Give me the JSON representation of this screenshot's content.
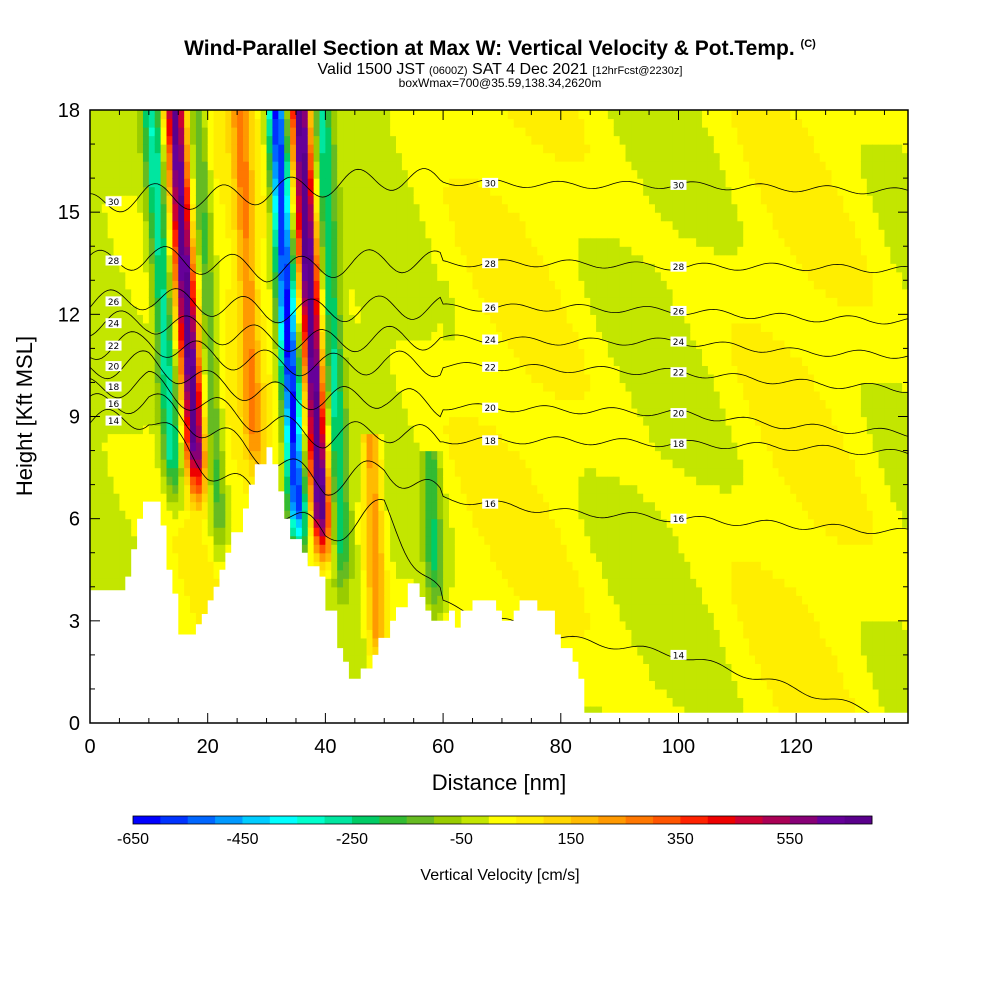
{
  "header": {
    "title": "Wind-Parallel Section at Max W: Vertical Velocity & Pot.Temp.",
    "copyright": "(C)",
    "subtitle_main": "Valid 1500 JST",
    "subtitle_utc": "(0600Z)",
    "subtitle_date": "SAT 4 Dec 2021",
    "subtitle_fcst": "[12hrFcst@2230z]",
    "box_note": "boxWmax=700@35.59,138.34,2620m"
  },
  "chart_data": {
    "type": "heatmap",
    "title": "Wind-Parallel Section at Max W: Vertical Velocity & Pot.Temp.",
    "xlabel": "Distance [nm]",
    "ylabel": "Height [Kft MSL]",
    "xlim": [
      0,
      139
    ],
    "ylim": [
      0,
      18
    ],
    "x_ticks": [
      "0",
      "20",
      "40",
      "60",
      "80",
      "100",
      "120"
    ],
    "x_tick_values": [
      0,
      20,
      40,
      60,
      80,
      100,
      120
    ],
    "y_ticks": [
      "0",
      "3",
      "6",
      "9",
      "12",
      "15",
      "18"
    ],
    "y_tick_values": [
      0,
      3,
      6,
      9,
      12,
      15,
      18
    ],
    "colorbar": {
      "label": "Vertical Velocity [cm/s]",
      "tick_labels": [
        "-650",
        "-450",
        "-250",
        "-50",
        "150",
        "350",
        "550"
      ],
      "min": -650,
      "max": 700,
      "step": 50,
      "colors": [
        "#0000ff",
        "#0033ff",
        "#0066ff",
        "#0099ff",
        "#00ccff",
        "#00ffff",
        "#00ffcc",
        "#00e6a0",
        "#00cc66",
        "#33bb33",
        "#66bb22",
        "#99cc00",
        "#c3e600",
        "#ffff00",
        "#ffee00",
        "#ffd700",
        "#ffbb00",
        "#ff9900",
        "#ff7700",
        "#ff5500",
        "#ff2200",
        "#ee0000",
        "#cc0033",
        "#aa0055",
        "#880077",
        "#660099",
        "#5a008c"
      ]
    },
    "terrain_kft": [
      [
        0,
        3.9
      ],
      [
        6,
        3.9
      ],
      [
        6,
        4.3
      ],
      [
        7,
        4.3
      ],
      [
        7,
        5.1
      ],
      [
        8,
        5.1
      ],
      [
        8,
        6.0
      ],
      [
        9,
        6.0
      ],
      [
        9,
        6.5
      ],
      [
        12,
        6.5
      ],
      [
        12,
        5.8
      ],
      [
        13,
        5.8
      ],
      [
        13,
        4.5
      ],
      [
        14,
        4.5
      ],
      [
        14,
        3.8
      ],
      [
        15,
        3.8
      ],
      [
        15,
        2.6
      ],
      [
        18,
        2.6
      ],
      [
        18,
        2.9
      ],
      [
        19,
        2.9
      ],
      [
        19,
        3.2
      ],
      [
        20,
        3.2
      ],
      [
        20,
        3.6
      ],
      [
        21,
        3.6
      ],
      [
        21,
        4.0
      ],
      [
        22,
        4.0
      ],
      [
        22,
        4.5
      ],
      [
        23,
        4.5
      ],
      [
        23,
        5.0
      ],
      [
        24,
        5.0
      ],
      [
        24,
        5.6
      ],
      [
        26,
        5.6
      ],
      [
        26,
        6.3
      ],
      [
        27,
        6.3
      ],
      [
        27,
        7.0
      ],
      [
        28,
        7.0
      ],
      [
        28,
        7.6
      ],
      [
        30,
        7.6
      ],
      [
        30,
        8.1
      ],
      [
        31,
        8.1
      ],
      [
        31,
        7.6
      ],
      [
        32,
        7.6
      ],
      [
        32,
        6.8
      ],
      [
        33,
        6.8
      ],
      [
        33,
        6.0
      ],
      [
        34,
        6.0
      ],
      [
        34,
        5.4
      ],
      [
        36,
        5.4
      ],
      [
        36,
        5.0
      ],
      [
        37,
        5.0
      ],
      [
        37,
        4.6
      ],
      [
        39,
        4.6
      ],
      [
        39,
        4.3
      ],
      [
        40,
        4.3
      ],
      [
        40,
        3.3
      ],
      [
        42,
        3.3
      ],
      [
        42,
        2.2
      ],
      [
        43,
        2.2
      ],
      [
        43,
        1.8
      ],
      [
        44,
        1.8
      ],
      [
        44,
        1.3
      ],
      [
        46,
        1.3
      ],
      [
        46,
        1.6
      ],
      [
        48,
        1.6
      ],
      [
        48,
        2.0
      ],
      [
        49,
        2.0
      ],
      [
        49,
        2.5
      ],
      [
        51,
        2.5
      ],
      [
        51,
        3.0
      ],
      [
        52,
        3.0
      ],
      [
        52,
        3.4
      ],
      [
        54,
        3.4
      ],
      [
        54,
        4.1
      ],
      [
        56,
        4.1
      ],
      [
        56,
        3.7
      ],
      [
        57,
        3.7
      ],
      [
        57,
        3.3
      ],
      [
        58,
        3.3
      ],
      [
        58,
        3.0
      ],
      [
        61,
        3.0
      ],
      [
        61,
        3.3
      ],
      [
        62,
        3.3
      ],
      [
        62,
        2.8
      ],
      [
        63,
        2.8
      ],
      [
        63,
        3.3
      ],
      [
        65,
        3.3
      ],
      [
        65,
        3.6
      ],
      [
        69,
        3.6
      ],
      [
        69,
        3.3
      ],
      [
        70,
        3.3
      ],
      [
        70,
        3.0
      ],
      [
        72,
        3.0
      ],
      [
        72,
        3.3
      ],
      [
        73,
        3.3
      ],
      [
        73,
        3.6
      ],
      [
        76,
        3.6
      ],
      [
        76,
        3.3
      ],
      [
        79,
        3.3
      ],
      [
        79,
        2.6
      ],
      [
        80,
        2.6
      ],
      [
        80,
        2.2
      ],
      [
        82,
        2.2
      ],
      [
        82,
        1.8
      ],
      [
        83,
        1.8
      ],
      [
        83,
        1.3
      ],
      [
        84,
        1.3
      ],
      [
        84,
        0.3
      ],
      [
        139,
        0.3
      ]
    ],
    "vertical_velocity_features": [
      {
        "center_nm": 16.5,
        "top_kft": 18,
        "bottom_kft": 7.0,
        "peak_cms": 650,
        "tilt_nm_per_kft": -0.35
      },
      {
        "center_nm": 12.5,
        "top_kft": 18,
        "bottom_kft": 6.8,
        "peak_cms": -300,
        "tilt_nm_per_kft": -0.35
      },
      {
        "center_nm": 20.0,
        "top_kft": 18,
        "bottom_kft": 5.0,
        "peak_cms": -200,
        "tilt_nm_per_kft": -0.3
      },
      {
        "center_nm": 37.5,
        "top_kft": 18,
        "bottom_kft": 5.2,
        "peak_cms": 700,
        "tilt_nm_per_kft": -0.3
      },
      {
        "center_nm": 33.5,
        "top_kft": 18,
        "bottom_kft": 5.4,
        "peak_cms": -650,
        "tilt_nm_per_kft": -0.3
      },
      {
        "center_nm": 27.0,
        "top_kft": 18,
        "bottom_kft": 7.6,
        "peak_cms": 200,
        "tilt_nm_per_kft": -0.25
      },
      {
        "center_nm": 41.0,
        "top_kft": 18,
        "bottom_kft": 4.3,
        "peak_cms": -250,
        "tilt_nm_per_kft": -0.25
      },
      {
        "center_nm": 47.0,
        "top_kft": 8.0,
        "bottom_kft": 1.6,
        "peak_cms": 250,
        "tilt_nm_per_kft": -0.2
      },
      {
        "center_nm": 57.0,
        "top_kft": 7.5,
        "bottom_kft": 3.3,
        "peak_cms": -200,
        "tilt_nm_per_kft": -0.2
      }
    ],
    "theta_contours": [
      {
        "label": "14",
        "heights_kft": [
          8.8,
          9.0,
          7.5,
          6.5,
          5.5,
          6.3,
          3.5,
          2.5,
          2.0,
          1.0,
          0.0
        ]
      },
      {
        "label": "16",
        "heights_kft": [
          9.3,
          9.5,
          8.6,
          7.8,
          7.0,
          7.5,
          6.6,
          6.2,
          6.0,
          5.8,
          5.6
        ]
      },
      {
        "label": "18",
        "heights_kft": [
          9.8,
          10.0,
          9.3,
          8.8,
          8.4,
          8.6,
          8.3,
          8.3,
          8.2,
          8.1,
          7.9
        ]
      },
      {
        "label": "20",
        "heights_kft": [
          10.4,
          10.6,
          10.0,
          9.7,
          9.5,
          9.6,
          9.3,
          9.2,
          9.1,
          8.7,
          8.5
        ]
      },
      {
        "label": "22",
        "heights_kft": [
          11.0,
          11.2,
          10.8,
          10.6,
          10.5,
          10.6,
          10.5,
          10.4,
          10.3,
          10.0,
          9.8
        ]
      },
      {
        "label": "24",
        "heights_kft": [
          11.7,
          11.8,
          11.5,
          11.3,
          11.2,
          11.3,
          11.3,
          11.2,
          11.2,
          10.9,
          10.8
        ]
      },
      {
        "label": "26",
        "heights_kft": [
          12.3,
          12.5,
          12.3,
          12.1,
          12.1,
          12.2,
          12.2,
          12.2,
          12.1,
          11.9,
          11.8
        ]
      },
      {
        "label": "28",
        "heights_kft": [
          13.5,
          13.7,
          13.5,
          13.3,
          13.4,
          13.6,
          13.5,
          13.5,
          13.4,
          13.4,
          13.3
        ]
      },
      {
        "label": "30",
        "heights_kft": [
          15.2,
          15.5,
          15.4,
          15.6,
          15.8,
          16.0,
          15.9,
          15.8,
          15.8,
          15.7,
          15.6
        ]
      }
    ],
    "theta_contour_x_nm": [
      0,
      10,
      20,
      30,
      40,
      50,
      60,
      80,
      100,
      120,
      139
    ]
  }
}
